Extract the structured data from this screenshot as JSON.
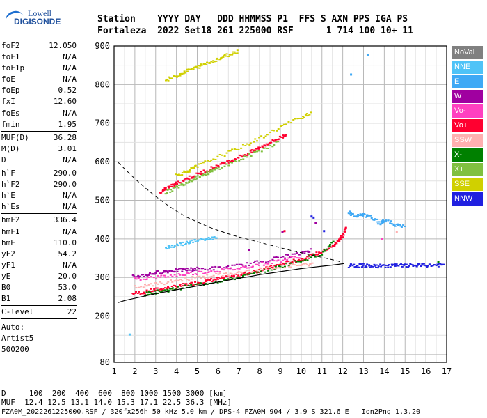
{
  "logo": {
    "line1": "Lowell",
    "line2": "DIGISONDE"
  },
  "header": {
    "row1": "Station    YYYY DAY   DDD HHMMSS P1  FFS S AXN PPS IGA PS",
    "row2": "Fortaleza  2022 Set18 261 225000 RSF      1 714 100 10+ 11"
  },
  "params_group1": [
    {
      "k": "foF2",
      "v": "12.050"
    },
    {
      "k": "foF1",
      "v": "N/A"
    },
    {
      "k": "foF1p",
      "v": "N/A"
    },
    {
      "k": "foE",
      "v": "N/A"
    },
    {
      "k": "foEp",
      "v": "0.52"
    },
    {
      "k": "fxI",
      "v": "12.60"
    },
    {
      "k": "foEs",
      "v": "N/A"
    },
    {
      "k": "fmin",
      "v": "1.95"
    }
  ],
  "params_group2": [
    {
      "k": "MUF(D)",
      "v": "36.28"
    },
    {
      "k": "M(D)",
      "v": "3.01"
    },
    {
      "k": "D",
      "v": "N/A"
    }
  ],
  "params_group3": [
    {
      "k": "h`F",
      "v": "290.0"
    },
    {
      "k": "h`F2",
      "v": "290.0"
    },
    {
      "k": "h`E",
      "v": "N/A"
    },
    {
      "k": "h`Es",
      "v": "N/A"
    }
  ],
  "params_group4": [
    {
      "k": "hmF2",
      "v": "336.4"
    },
    {
      "k": "hmF1",
      "v": "N/A"
    },
    {
      "k": "hmE",
      "v": "110.0"
    },
    {
      "k": "yF2",
      "v": "54.2"
    },
    {
      "k": "yF1",
      "v": "N/A"
    },
    {
      "k": "yE",
      "v": "20.0"
    },
    {
      "k": "B0",
      "v": "53.0"
    },
    {
      "k": "B1",
      "v": "2.08"
    }
  ],
  "params_group5": [
    {
      "k": "C-level",
      "v": "22"
    }
  ],
  "autoscale": {
    "l1": "Auto:",
    "l2": "Artist5",
    "l3": "500200"
  },
  "legend": [
    {
      "label": "NoVal",
      "color": "#808080"
    },
    {
      "label": "NNE",
      "color": "#4fc3f7"
    },
    {
      "label": "E",
      "color": "#3fa9f5"
    },
    {
      "label": "W",
      "color": "#a000a0"
    },
    {
      "label": "Vo-",
      "color": "#ff40c0"
    },
    {
      "label": "Vo+",
      "color": "#ff0030"
    },
    {
      "label": "SSW",
      "color": "#ffb0b0"
    },
    {
      "label": "X-",
      "color": "#008000"
    },
    {
      "label": "X+",
      "color": "#80c040"
    },
    {
      "label": "SSE",
      "color": "#d0d000"
    },
    {
      "label": "NNW",
      "color": "#2020e0"
    }
  ],
  "footer": {
    "d_row": "D     100  200  400  600  800 1000 1500 3000 [km]",
    "muf_row": "MUF  12.4 12.5 13.1 14.0 15.3 17.1 22.5 36.3 [MHz]",
    "info_row": "FZA0M_2022261225000.RSF / 320fx256h 50 kHz 5.0 km / DPS-4 FZA0M 904 / 3.9 S 321.6 E   Ion2Png 1.3.20"
  },
  "chart_data": {
    "type": "scatter",
    "xlim": [
      1,
      17
    ],
    "ylim": [
      80,
      900
    ],
    "x_ticks": [
      "1",
      "2",
      "3",
      "4",
      "5",
      "6",
      "7",
      "8",
      "9",
      "10",
      "11",
      "12",
      "13",
      "14",
      "15",
      "16",
      "17"
    ],
    "y_ticks": [
      {
        "v": 100,
        "label": ""
      },
      {
        "v": 200,
        "label": "200"
      },
      {
        "v": 300,
        "label": "300"
      },
      {
        "v": 400,
        "label": "400"
      },
      {
        "v": 500,
        "label": "500"
      },
      {
        "v": 600,
        "label": "600"
      },
      {
        "v": 700,
        "label": "700"
      },
      {
        "v": 800,
        "label": "800"
      },
      {
        "v": 900,
        "label": "900"
      }
    ],
    "y_bottom_label": "80",
    "grid": true,
    "echo_traces": [
      {
        "color": "#ff0030",
        "pts": [
          [
            1.9,
            258
          ],
          [
            2.5,
            262
          ],
          [
            3,
            268
          ],
          [
            3.5,
            272
          ],
          [
            4,
            276
          ],
          [
            4.5,
            281
          ],
          [
            5,
            286
          ],
          [
            5.5,
            291
          ],
          [
            6,
            296
          ],
          [
            6.5,
            300
          ],
          [
            7,
            305
          ],
          [
            7.5,
            311
          ],
          [
            8,
            318
          ],
          [
            8.5,
            326
          ],
          [
            9,
            333
          ],
          [
            9.5,
            340
          ],
          [
            10,
            347
          ],
          [
            10.5,
            356
          ],
          [
            11,
            366
          ],
          [
            11.5,
            380
          ],
          [
            11.8,
            395
          ],
          [
            12,
            410
          ],
          [
            12.2,
            432
          ]
        ]
      },
      {
        "color": "#008000",
        "pts": [
          [
            2.5,
            256
          ],
          [
            3,
            262
          ],
          [
            3.5,
            266
          ],
          [
            4,
            271
          ],
          [
            5,
            281
          ],
          [
            6,
            290
          ],
          [
            7,
            300
          ],
          [
            8,
            313
          ],
          [
            9,
            328
          ],
          [
            10,
            344
          ],
          [
            11,
            362
          ],
          [
            11.6,
            392
          ]
        ]
      },
      {
        "color": "#a000a0",
        "pts": [
          [
            1.9,
            302
          ],
          [
            2.5,
            306
          ],
          [
            3,
            312
          ],
          [
            3.5,
            316
          ],
          [
            4,
            318
          ],
          [
            4.5,
            320
          ],
          [
            5,
            322
          ],
          [
            6,
            324
          ],
          [
            7,
            330
          ],
          [
            8,
            340
          ],
          [
            9,
            352
          ],
          [
            10,
            362
          ],
          [
            10.5,
            372
          ]
        ]
      },
      {
        "color": "#ff40c0",
        "pts": [
          [
            2,
            296
          ],
          [
            3,
            300
          ],
          [
            4,
            306
          ],
          [
            5,
            312
          ],
          [
            6,
            318
          ],
          [
            7,
            324
          ],
          [
            8,
            334
          ],
          [
            9,
            344
          ],
          [
            10,
            356
          ]
        ]
      },
      {
        "color": "#ff0030",
        "pts": [
          [
            3.2,
            518
          ],
          [
            3.5,
            530
          ],
          [
            4,
            543
          ],
          [
            4.5,
            556
          ],
          [
            5,
            567
          ],
          [
            5.5,
            578
          ],
          [
            6,
            590
          ],
          [
            6.5,
            600
          ],
          [
            7,
            612
          ],
          [
            7.5,
            622
          ],
          [
            8,
            636
          ],
          [
            8.5,
            650
          ],
          [
            9,
            662
          ],
          [
            9.3,
            672
          ]
        ]
      },
      {
        "color": "#80c040",
        "pts": [
          [
            3.5,
            520
          ],
          [
            4,
            533
          ],
          [
            4.5,
            547
          ],
          [
            5,
            560
          ],
          [
            5.5,
            570
          ],
          [
            6,
            583
          ],
          [
            7,
            604
          ],
          [
            8,
            628
          ],
          [
            9,
            654
          ]
        ]
      },
      {
        "color": "#d0d000",
        "pts": [
          [
            4,
            565
          ],
          [
            4.5,
            575
          ],
          [
            5,
            588
          ],
          [
            6,
            612
          ],
          [
            7,
            635
          ],
          [
            8,
            660
          ],
          [
            9,
            690
          ],
          [
            10,
            715
          ],
          [
            10.5,
            728
          ]
        ]
      },
      {
        "color": "#d0d000",
        "pts": [
          [
            3.5,
            812
          ],
          [
            4,
            822
          ],
          [
            4.5,
            835
          ],
          [
            5,
            845
          ],
          [
            5.5,
            855
          ],
          [
            6,
            866
          ],
          [
            6.5,
            877
          ],
          [
            7,
            888
          ]
        ]
      },
      {
        "color": "#4fc3f7",
        "pts": [
          [
            3.5,
            378
          ],
          [
            4,
            384
          ],
          [
            4.5,
            390
          ],
          [
            5,
            396
          ],
          [
            5.5,
            400
          ],
          [
            6,
            404
          ]
        ]
      },
      {
        "color": "#2020e0",
        "pts": [
          [
            12.3,
            330
          ],
          [
            12.7,
            330
          ],
          [
            13,
            331
          ],
          [
            13.5,
            329
          ],
          [
            14,
            330
          ],
          [
            14.5,
            331
          ],
          [
            15,
            330
          ],
          [
            15.5,
            331
          ],
          [
            16,
            331
          ],
          [
            16.5,
            332
          ],
          [
            16.9,
            332
          ]
        ]
      },
      {
        "color": "#ffb0b0",
        "pts": [
          [
            2,
            274
          ],
          [
            3,
            282
          ],
          [
            4,
            292
          ],
          [
            5,
            300
          ],
          [
            6,
            306
          ],
          [
            7,
            312
          ],
          [
            8,
            320
          ],
          [
            9,
            328
          ],
          [
            10,
            332
          ],
          [
            10.6,
            334
          ]
        ]
      },
      {
        "color": "#3fa9f5",
        "pts": [
          [
            12.3,
            470
          ],
          [
            12.6,
            458
          ],
          [
            13,
            462
          ],
          [
            13.4,
            455
          ],
          [
            13.8,
            440
          ],
          [
            14,
            448
          ],
          [
            14.5,
            438
          ],
          [
            15,
            430
          ]
        ]
      }
    ],
    "profile_dashed": [
      [
        1.2,
        598
      ],
      [
        1.5,
        582
      ],
      [
        2,
        556
      ],
      [
        2.5,
        532
      ],
      [
        3,
        510
      ],
      [
        3.5,
        490
      ],
      [
        4,
        472
      ],
      [
        4.5,
        456
      ],
      [
        5,
        444
      ],
      [
        5.5,
        432
      ],
      [
        6,
        422
      ],
      [
        6.5,
        413
      ],
      [
        7,
        405
      ],
      [
        7.5,
        398
      ],
      [
        8,
        391
      ],
      [
        8.5,
        384
      ],
      [
        9,
        377
      ],
      [
        9.5,
        370
      ],
      [
        10,
        364
      ],
      [
        10.5,
        358
      ],
      [
        11,
        352
      ],
      [
        11.5,
        346
      ],
      [
        11.8,
        342
      ],
      [
        12.05,
        336
      ]
    ],
    "profile_solid": [
      [
        1.2,
        235
      ],
      [
        1.5,
        240
      ],
      [
        2,
        246
      ],
      [
        2.5,
        252
      ],
      [
        3,
        258
      ],
      [
        3.5,
        263
      ],
      [
        4,
        268
      ],
      [
        4.5,
        273
      ],
      [
        5,
        278
      ],
      [
        5.5,
        283
      ],
      [
        6,
        288
      ],
      [
        6.5,
        293
      ],
      [
        7,
        298
      ],
      [
        7.5,
        302
      ],
      [
        8,
        307
      ],
      [
        8.5,
        311
      ],
      [
        9,
        315
      ],
      [
        9.5,
        319
      ],
      [
        10,
        323
      ],
      [
        10.5,
        326
      ],
      [
        11,
        329
      ],
      [
        11.5,
        332
      ],
      [
        11.8,
        334
      ],
      [
        12.05,
        336
      ]
    ],
    "dots": [
      [
        1.75,
        152,
        "#4fc3f7"
      ],
      [
        12.4,
        826,
        "#3fa9f5"
      ],
      [
        13.2,
        876,
        "#3fa9f5"
      ],
      [
        10.5,
        458,
        "#2020e0"
      ],
      [
        10.6,
        455,
        "#2020e0"
      ],
      [
        9.2,
        420,
        "#ff0030"
      ],
      [
        9.1,
        418,
        "#a000a0"
      ],
      [
        16.6,
        340,
        "#008000"
      ],
      [
        13.9,
        400,
        "#ff40c0"
      ],
      [
        14.6,
        418,
        "#ffb0b0"
      ],
      [
        7.5,
        370,
        "#a000a0"
      ],
      [
        11.1,
        420,
        "#2020e0"
      ],
      [
        10.7,
        442,
        "#a000a0"
      ]
    ]
  }
}
